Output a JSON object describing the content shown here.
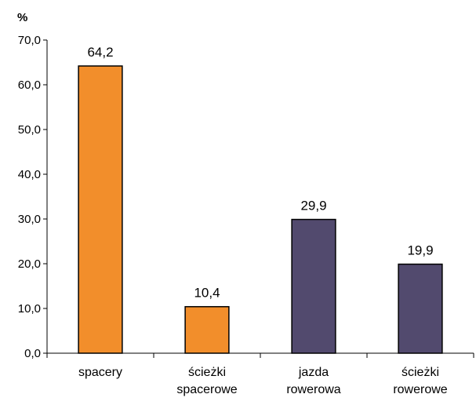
{
  "chart_data": {
    "type": "bar",
    "title": "",
    "ylabel": "%",
    "xlabel": "",
    "ylim": [
      0,
      70
    ],
    "yticks": [
      0,
      10,
      20,
      30,
      40,
      50,
      60,
      70
    ],
    "ytick_labels": [
      "0,0",
      "10,0",
      "20,0",
      "30,0",
      "40,0",
      "50,0",
      "60,0",
      "70,0"
    ],
    "categories": [
      [
        "spacery"
      ],
      [
        "ścieżki",
        "spacerowe"
      ],
      [
        "jazda",
        "rowerowa"
      ],
      [
        "ścieżki",
        "rowerowe"
      ]
    ],
    "values": [
      64.2,
      10.4,
      29.9,
      19.9
    ],
    "value_labels": [
      "64,2",
      "10,4",
      "29,9",
      "19,9"
    ],
    "colors": [
      "#f28e2b",
      "#f28e2b",
      "#524a6e",
      "#524a6e"
    ],
    "grid": false,
    "legend": "none"
  }
}
